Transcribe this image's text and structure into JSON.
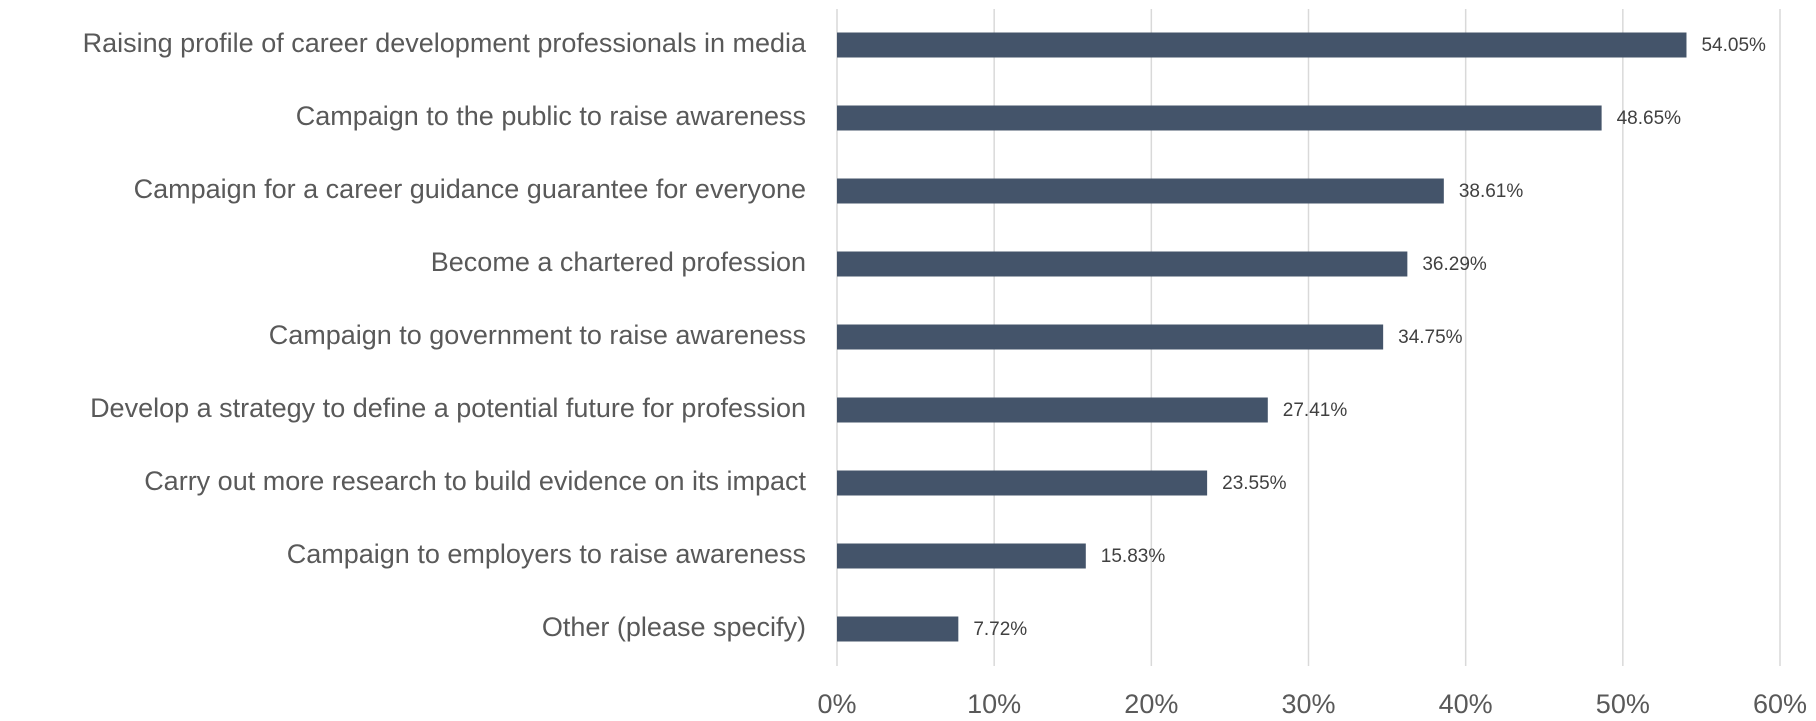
{
  "chart_data": {
    "type": "bar",
    "orientation": "horizontal",
    "categories": [
      "Raising profile of career development professionals in media",
      "Campaign to the public to raise awareness",
      "Campaign for a career guidance guarantee for everyone",
      "Become a chartered profession",
      "Campaign to government to raise awareness",
      "Develop a strategy to define a potential future for profession",
      "Carry out more research to build evidence on its impact",
      "Campaign to employers to raise awareness",
      "Other (please specify)"
    ],
    "values": [
      54.05,
      48.65,
      38.61,
      36.29,
      34.75,
      27.41,
      23.55,
      15.83,
      7.72
    ],
    "value_labels": [
      "54.05%",
      "48.65%",
      "38.61%",
      "36.29%",
      "34.75%",
      "27.41%",
      "23.55%",
      "15.83%",
      "7.72%"
    ],
    "color": "#44546a",
    "xlim": [
      0,
      60
    ],
    "xticks": [
      {
        "value": 0,
        "label": "0%"
      },
      {
        "value": 10,
        "label": "10%"
      },
      {
        "value": 20,
        "label": "20%"
      },
      {
        "value": 30,
        "label": "30%"
      },
      {
        "value": 40,
        "label": "40%"
      },
      {
        "value": 50,
        "label": "50%"
      },
      {
        "value": 60,
        "label": "60%"
      }
    ],
    "grid": true
  }
}
